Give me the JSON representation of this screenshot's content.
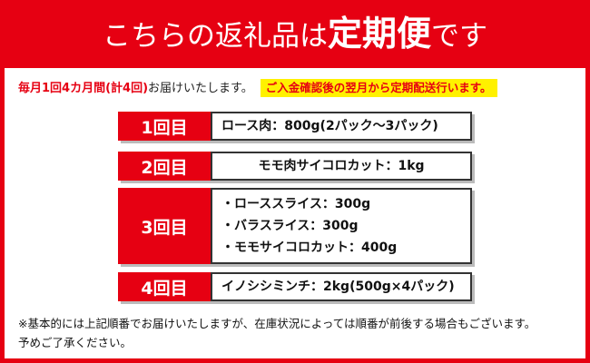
{
  "header": {
    "title_prefix": "こちらの返礼品は",
    "title_emphasis": "定期便",
    "title_suffix": "です"
  },
  "intro": {
    "highlight": "毎月1回4カ月間(計4回)",
    "text": "お届けいたします。",
    "notice": "ご入金確認後の翌月から定期配送行います。"
  },
  "schedule": [
    {
      "label": "1回目",
      "items": [
        "ロース肉：800g(2パック～3パック)"
      ]
    },
    {
      "label": "2回目",
      "items": [
        "モモ肉サイコロカット：1kg"
      ]
    },
    {
      "label": "3回目",
      "items": [
        "・ローススライス：300g",
        "・バラスライス：300g",
        "・モモサイコロカット：400g"
      ]
    },
    {
      "label": "4回目",
      "items": [
        "イノシシミンチ：2kg(500g×4パック)"
      ]
    }
  ],
  "note": [
    "※基本的には上記順番でお届けいたしますが、在庫状況によっては順番が前後する場合もございます。",
    "予めご了承ください。"
  ]
}
